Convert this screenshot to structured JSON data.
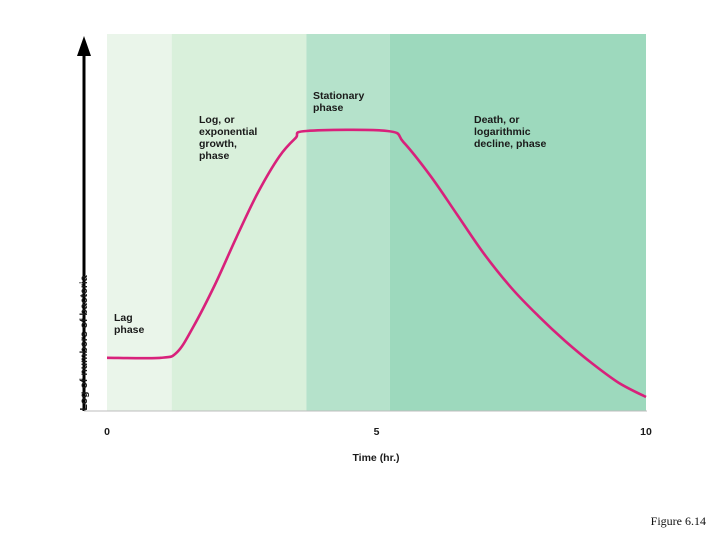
{
  "chart_data": {
    "type": "line",
    "title": "",
    "xlabel": "Time (hr.)",
    "ylabel": "Log of numbers of bacteria",
    "xlim": [
      0,
      10
    ],
    "ylim": [
      0,
      1
    ],
    "x_ticks": [
      {
        "value": 0,
        "label": "0"
      },
      {
        "value": 5,
        "label": "5"
      },
      {
        "value": 10,
        "label": "10"
      }
    ],
    "phases": [
      {
        "name": "lag",
        "lines": [
          "Lag",
          "phase"
        ],
        "start": 0,
        "end": 1.2,
        "color": "#eaf5ea"
      },
      {
        "name": "log",
        "lines": [
          "Log, or",
          "exponential",
          "growth,",
          "phase"
        ],
        "start": 1.2,
        "end": 3.7,
        "color": "#d9f0db"
      },
      {
        "name": "stationary",
        "lines": [
          "Stationary",
          "phase"
        ],
        "start": 3.7,
        "end": 5.25,
        "color": "#b5e2cb"
      },
      {
        "name": "death",
        "lines": [
          "Death, or",
          "logarithmic",
          "decline, phase"
        ],
        "start": 5.25,
        "end": 10,
        "color": "#9dd9bd"
      }
    ],
    "series": [
      {
        "color": "#d8217b",
        "points": [
          [
            0,
            0.19
          ],
          [
            1.0,
            0.19
          ],
          [
            1.3,
            0.21
          ],
          [
            1.6,
            0.3
          ],
          [
            2.0,
            0.45
          ],
          [
            2.4,
            0.62
          ],
          [
            2.8,
            0.78
          ],
          [
            3.2,
            0.91
          ],
          [
            3.5,
            0.975
          ],
          [
            3.7,
            1.0
          ],
          [
            5.2,
            1.0
          ],
          [
            5.5,
            0.96
          ],
          [
            6.0,
            0.84
          ],
          [
            6.5,
            0.7
          ],
          [
            7.0,
            0.56
          ],
          [
            7.5,
            0.44
          ],
          [
            8.0,
            0.34
          ],
          [
            8.5,
            0.25
          ],
          [
            9.0,
            0.17
          ],
          [
            9.5,
            0.1
          ],
          [
            10.0,
            0.05
          ]
        ]
      }
    ],
    "grid": false
  },
  "caption": "Figure 6.14"
}
